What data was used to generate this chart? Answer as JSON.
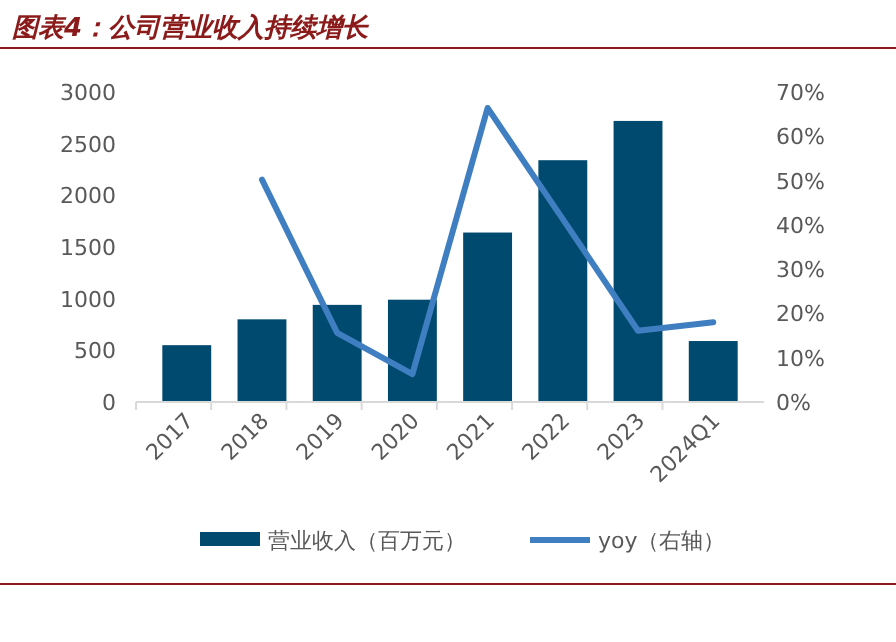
{
  "chart_data": {
    "type": "bar",
    "title": "图表4：公司营业收入持续增长",
    "categories": [
      "2017",
      "2018",
      "2019",
      "2020",
      "2021",
      "2022",
      "2023",
      "2024Q1"
    ],
    "series": [
      {
        "name": "营业收入（百万元）",
        "color": "#004a6f",
        "values": [
          550,
          800,
          940,
          990,
          1640,
          2340,
          2720,
          590
        ]
      },
      {
        "name": "yoy（右轴）",
        "type": "line",
        "axis": "y2",
        "color": "#3f7fc1",
        "values": [
          null,
          50.2,
          15.6,
          6.3,
          66.4,
          41.3,
          16.1,
          18.0
        ]
      }
    ],
    "ylim": [
      0,
      3000
    ],
    "yticks": [
      0,
      500,
      1000,
      1500,
      2000,
      2500,
      3000
    ],
    "y2lim": [
      0,
      70
    ],
    "y2ticks": [
      {
        "value": 0,
        "label": "0%"
      },
      {
        "value": 10,
        "label": "10%"
      },
      {
        "value": 20,
        "label": "20%"
      },
      {
        "value": 30,
        "label": "30%"
      },
      {
        "value": 40,
        "label": "40%"
      },
      {
        "value": 50,
        "label": "50%"
      },
      {
        "value": 60,
        "label": "60%"
      },
      {
        "value": 70,
        "label": "70%"
      }
    ],
    "grid": false,
    "legend": "bottom",
    "marker": "none",
    "line_style": "solid"
  }
}
